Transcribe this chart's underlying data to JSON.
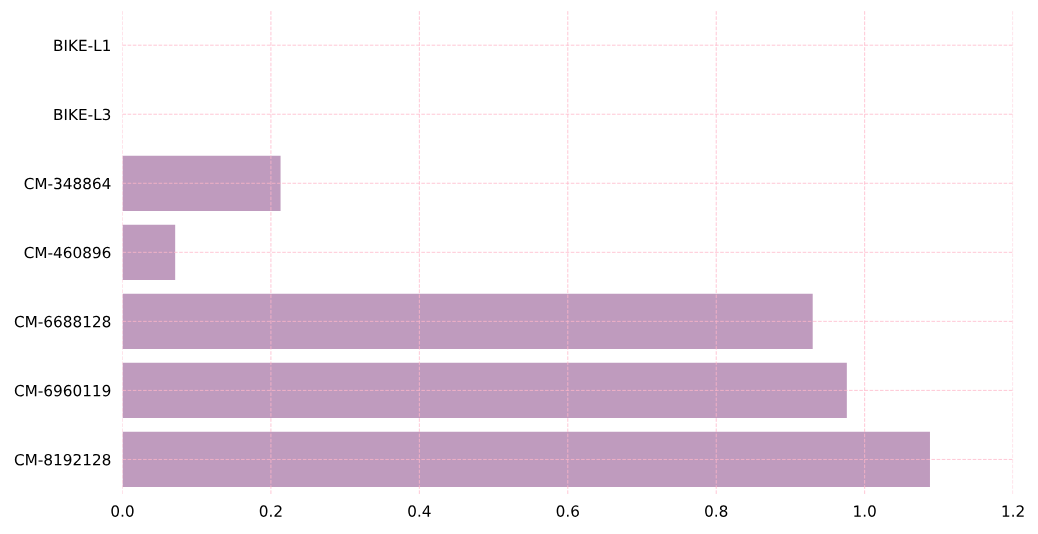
{
  "chart_data": {
    "type": "bar",
    "orientation": "horizontal",
    "categories": [
      "BIKE-L1",
      "BIKE-L3",
      "CM-348864",
      "CM-460896",
      "CM-6688128",
      "CM-6960119",
      "CM-8192128"
    ],
    "values": [
      0,
      0,
      0.213,
      0.071,
      0.93,
      0.976,
      1.088
    ],
    "color": "#bf9bbe",
    "xlim": [
      0,
      1.2
    ],
    "xticks": [
      {
        "value": 0,
        "label": "0.0"
      },
      0.2,
      0.4,
      0.6,
      0.8,
      {
        "value": 1,
        "label": "1.0"
      },
      1.2
    ],
    "grid": true,
    "legend": false
  }
}
